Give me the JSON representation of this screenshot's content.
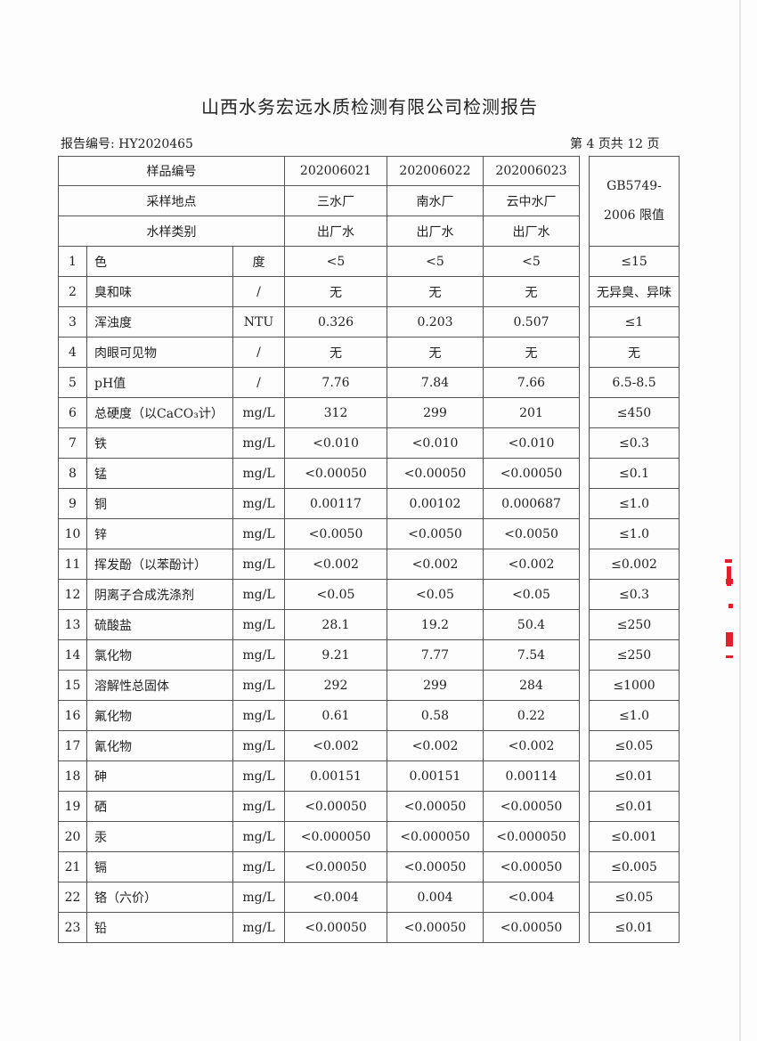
{
  "title": "山西水务宏远水质检测有限公司检测报告",
  "report_no": "报告编号: HY2020465",
  "page_info": "第 4 页共 12 页",
  "header": {
    "sample_no_label": "样品编号",
    "site_label": "采样地点",
    "type_label": "水样类别",
    "limit_label_1": "GB5749-",
    "limit_label_2": "2006 限值",
    "samples": [
      {
        "no": "202006021",
        "site": "三水厂",
        "type": "出厂水"
      },
      {
        "no": "202006022",
        "site": "南水厂",
        "type": "出厂水"
      },
      {
        "no": "202006023",
        "site": "云中水厂",
        "type": "出厂水"
      }
    ]
  },
  "rows": [
    {
      "n": "1",
      "item": "色",
      "unit": "度",
      "v": [
        "<5",
        "<5",
        "<5"
      ],
      "limit": "≤15"
    },
    {
      "n": "2",
      "item": "臭和味",
      "unit": "/",
      "v": [
        "无",
        "无",
        "无"
      ],
      "limit": "无异臭、异味"
    },
    {
      "n": "3",
      "item": "浑浊度",
      "unit": "NTU",
      "v": [
        "0.326",
        "0.203",
        "0.507"
      ],
      "limit": "≤1"
    },
    {
      "n": "4",
      "item": "肉眼可见物",
      "unit": "/",
      "v": [
        "无",
        "无",
        "无"
      ],
      "limit": "无"
    },
    {
      "n": "5",
      "item": "pH值",
      "unit": "/",
      "v": [
        "7.76",
        "7.84",
        "7.66"
      ],
      "limit": "6.5-8.5"
    },
    {
      "n": "6",
      "item": "总硬度（以CaCO₃计）",
      "unit": "mg/L",
      "v": [
        "312",
        "299",
        "201"
      ],
      "limit": "≤450"
    },
    {
      "n": "7",
      "item": "铁",
      "unit": "mg/L",
      "v": [
        "<0.010",
        "<0.010",
        "<0.010"
      ],
      "limit": "≤0.3"
    },
    {
      "n": "8",
      "item": "锰",
      "unit": "mg/L",
      "v": [
        "<0.00050",
        "<0.00050",
        "<0.00050"
      ],
      "limit": "≤0.1"
    },
    {
      "n": "9",
      "item": "铜",
      "unit": "mg/L",
      "v": [
        "0.00117",
        "0.00102",
        "0.000687"
      ],
      "limit": "≤1.0"
    },
    {
      "n": "10",
      "item": "锌",
      "unit": "mg/L",
      "v": [
        "<0.0050",
        "<0.0050",
        "<0.0050"
      ],
      "limit": "≤1.0"
    },
    {
      "n": "11",
      "item": "挥发酚（以苯酚计）",
      "unit": "mg/L",
      "v": [
        "<0.002",
        "<0.002",
        "<0.002"
      ],
      "limit": "≤0.002"
    },
    {
      "n": "12",
      "item": "阴离子合成洗涤剂",
      "unit": "mg/L",
      "v": [
        "<0.05",
        "<0.05",
        "<0.05"
      ],
      "limit": "≤0.3"
    },
    {
      "n": "13",
      "item": "硫酸盐",
      "unit": "mg/L",
      "v": [
        "28.1",
        "19.2",
        "50.4"
      ],
      "limit": "≤250"
    },
    {
      "n": "14",
      "item": "氯化物",
      "unit": "mg/L",
      "v": [
        "9.21",
        "7.77",
        "7.54"
      ],
      "limit": "≤250"
    },
    {
      "n": "15",
      "item": "溶解性总固体",
      "unit": "mg/L",
      "v": [
        "292",
        "299",
        "284"
      ],
      "limit": "≤1000"
    },
    {
      "n": "16",
      "item": "氟化物",
      "unit": "mg/L",
      "v": [
        "0.61",
        "0.58",
        "0.22"
      ],
      "limit": "≤1.0"
    },
    {
      "n": "17",
      "item": "氰化物",
      "unit": "mg/L",
      "v": [
        "<0.002",
        "<0.002",
        "<0.002"
      ],
      "limit": "≤0.05"
    },
    {
      "n": "18",
      "item": "砷",
      "unit": "mg/L",
      "v": [
        "0.00151",
        "0.00151",
        "0.00114"
      ],
      "limit": "≤0.01"
    },
    {
      "n": "19",
      "item": "硒",
      "unit": "mg/L",
      "v": [
        "<0.00050",
        "<0.00050",
        "<0.00050"
      ],
      "limit": "≤0.01"
    },
    {
      "n": "20",
      "item": "汞",
      "unit": "mg/L",
      "v": [
        "<0.000050",
        "<0.000050",
        "<0.000050"
      ],
      "limit": "≤0.001"
    },
    {
      "n": "21",
      "item": "镉",
      "unit": "mg/L",
      "v": [
        "<0.00050",
        "<0.00050",
        "<0.00050"
      ],
      "limit": "≤0.005"
    },
    {
      "n": "22",
      "item": "铬（六价）",
      "unit": "mg/L",
      "v": [
        "<0.004",
        "0.004",
        "<0.004"
      ],
      "limit": "≤0.05"
    },
    {
      "n": "23",
      "item": "铅",
      "unit": "mg/L",
      "v": [
        "<0.00050",
        "<0.00050",
        "<0.00050"
      ],
      "limit": "≤0.01"
    }
  ],
  "colors": {
    "stamp": "#e0202a",
    "line": "#555555"
  }
}
